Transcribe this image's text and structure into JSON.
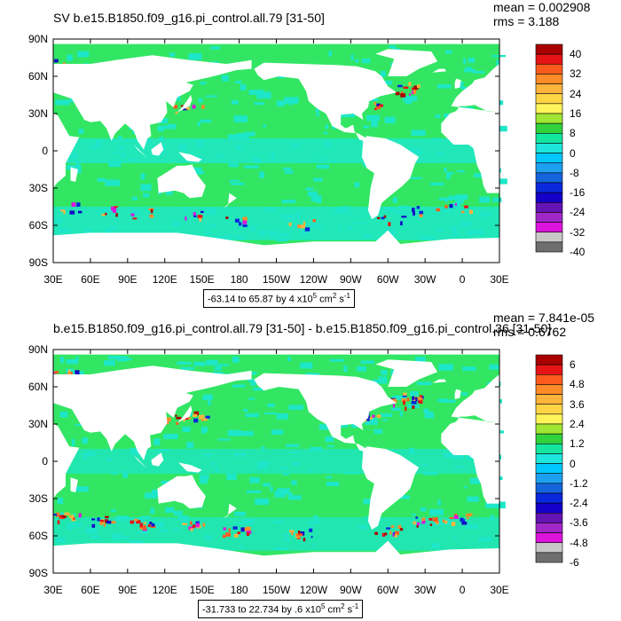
{
  "panels": [
    {
      "id": "top",
      "title": "SV b.e15.B1850.f09_g16.pi_control.all.79 [31-50]",
      "mean": "mean = 0.002908",
      "rms": "rms = 3.188",
      "range_text": "-63.14 to 65.87 by 4 x10",
      "range_exp": "5",
      "range_units": " cm",
      "range_units_exp": "2",
      "range_tail": " s",
      "range_tail_exp": "-1",
      "colorbar_labels": [
        "40",
        "32",
        "24",
        "16",
        "8",
        "0",
        "-8",
        "-16",
        "-24",
        "-32",
        "-40"
      ]
    },
    {
      "id": "bottom",
      "title": "b.e15.B1850.f09_g16.pi_control.all.79 [31-50] - b.e15.B1850.f09_g16.pi_control.36 [31-50]",
      "mean": "mean = 7.841e-05",
      "rms": "rms = 0.6762",
      "range_text": "-31.733 to 22.734 by .6 x10",
      "range_exp": "5",
      "range_units": " cm",
      "range_units_exp": "2",
      "range_tail": " s",
      "range_tail_exp": "-1",
      "colorbar_labels": [
        "6",
        "4.8",
        "3.6",
        "2.4",
        "1.2",
        "0",
        "-1.2",
        "-2.4",
        "-3.6",
        "-4.8",
        "-6"
      ]
    }
  ],
  "lat_labels": [
    "90N",
    "60N",
    "30N",
    "0",
    "30S",
    "60S",
    "90S"
  ],
  "lon_labels": [
    "30E",
    "60E",
    "90E",
    "120E",
    "150E",
    "180",
    "150W",
    "120W",
    "90W",
    "60W",
    "30W",
    "0",
    "30E"
  ],
  "colorbar_colors": [
    "#aa0000",
    "#e61414",
    "#ff5a1e",
    "#ff8c28",
    "#ffb43c",
    "#ffd546",
    "#fff55a",
    "#a0e632",
    "#32d23c",
    "#14e6a0",
    "#1ee6dc",
    "#00c8ff",
    "#1ea0f0",
    "#1464dc",
    "#0a28dc",
    "#1400c8",
    "#6414b4",
    "#a028c8",
    "#dc14dc",
    "#c8c8c8",
    "#6e6e6e"
  ],
  "map_colors": {
    "ocean_main": "#32e664",
    "ocean_cyan": "#1ee6c8",
    "land": "#ffffff"
  }
}
